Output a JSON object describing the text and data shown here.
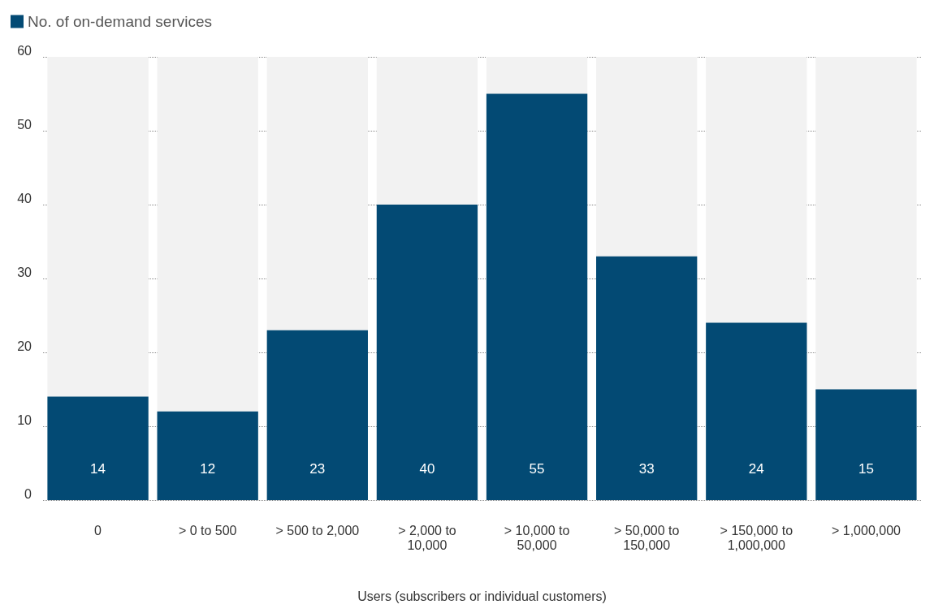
{
  "chart_data": {
    "type": "bar",
    "xlabel": "Users (subscribers or individual customers)",
    "categories": [
      "0",
      "> 0 to 500",
      "> 500 to 2,000",
      "> 2,000 to 10,000",
      "> 10,000 to 50,000",
      "> 50,000 to 150,000",
      "> 150,000 to 1,000,000",
      "> 1,000,000"
    ],
    "series": [
      {
        "name": "No. of on-demand services",
        "color": "#034a74",
        "values": [
          14,
          12,
          23,
          40,
          55,
          33,
          24,
          15
        ]
      }
    ],
    "ylim": [
      0,
      60
    ],
    "yticks": [
      0,
      10,
      20,
      30,
      40,
      50,
      60
    ],
    "grid": "y",
    "legend": "top left",
    "data_labels": true
  }
}
